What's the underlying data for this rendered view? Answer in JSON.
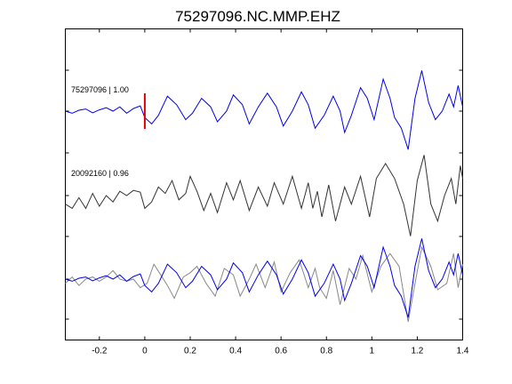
{
  "chart_data": {
    "type": "line",
    "title": "75297096.NC.MMP.EHZ",
    "xlabel": "",
    "ylabel": "",
    "xlim": [
      -0.35,
      1.4
    ],
    "xticks": [
      -0.2,
      0,
      0.2,
      0.4,
      0.6,
      0.8,
      1,
      1.2,
      1.4
    ],
    "xtick_labels": [
      "-0.2",
      "0",
      "0.2",
      "0.4",
      "0.6",
      "0.8",
      "1",
      "1.2",
      "1.4"
    ],
    "grid": false,
    "legend": "none",
    "pick_marker": {
      "x": 0,
      "color": "#e00000"
    },
    "traces": [
      {
        "label": "75297096 | 1.00",
        "color": "#0000ee",
        "points": [
          [
            -0.35,
            0
          ],
          [
            -0.32,
            -0.05
          ],
          [
            -0.29,
            0.02
          ],
          [
            -0.26,
            0.05
          ],
          [
            -0.23,
            -0.04
          ],
          [
            -0.2,
            0.03
          ],
          [
            -0.17,
            0.08
          ],
          [
            -0.14,
            0.0
          ],
          [
            -0.11,
            0.1
          ],
          [
            -0.08,
            -0.05
          ],
          [
            -0.05,
            0.06
          ],
          [
            -0.02,
            0.12
          ],
          [
            0.0,
            -0.15
          ],
          [
            0.03,
            -0.3
          ],
          [
            0.06,
            -0.1
          ],
          [
            0.1,
            0.35
          ],
          [
            0.14,
            0.15
          ],
          [
            0.18,
            -0.2
          ],
          [
            0.21,
            -0.05
          ],
          [
            0.25,
            0.3
          ],
          [
            0.29,
            0.1
          ],
          [
            0.32,
            -0.25
          ],
          [
            0.36,
            0.0
          ],
          [
            0.39,
            0.38
          ],
          [
            0.43,
            0.15
          ],
          [
            0.46,
            -0.3
          ],
          [
            0.5,
            0.1
          ],
          [
            0.54,
            0.42
          ],
          [
            0.58,
            0.1
          ],
          [
            0.61,
            -0.35
          ],
          [
            0.65,
            0.0
          ],
          [
            0.69,
            0.45
          ],
          [
            0.72,
            0.15
          ],
          [
            0.75,
            -0.4
          ],
          [
            0.79,
            -0.1
          ],
          [
            0.83,
            0.35
          ],
          [
            0.86,
            0.0
          ],
          [
            0.88,
            -0.5
          ],
          [
            0.91,
            -0.1
          ],
          [
            0.95,
            0.55
          ],
          [
            0.98,
            0.3
          ],
          [
            1.01,
            -0.2
          ],
          [
            1.05,
            0.75
          ],
          [
            1.08,
            0.3
          ],
          [
            1.1,
            -0.15
          ],
          [
            1.13,
            -0.4
          ],
          [
            1.16,
            -0.9
          ],
          [
            1.19,
            0.3
          ],
          [
            1.22,
            0.95
          ],
          [
            1.25,
            0.2
          ],
          [
            1.28,
            -0.2
          ],
          [
            1.31,
            0.0
          ],
          [
            1.34,
            0.4
          ],
          [
            1.36,
            0.1
          ],
          [
            1.38,
            0.6
          ],
          [
            1.4,
            0.1
          ]
        ]
      },
      {
        "label": "20092160 | 0.96",
        "color": "#333333",
        "points": [
          [
            -0.35,
            -0.2
          ],
          [
            -0.32,
            -0.3
          ],
          [
            -0.29,
            -0.05
          ],
          [
            -0.26,
            -0.3
          ],
          [
            -0.23,
            0.05
          ],
          [
            -0.2,
            -0.25
          ],
          [
            -0.17,
            0.0
          ],
          [
            -0.14,
            -0.15
          ],
          [
            -0.11,
            0.1
          ],
          [
            -0.08,
            0.0
          ],
          [
            -0.05,
            0.12
          ],
          [
            -0.02,
            0.08
          ],
          [
            0.0,
            -0.3
          ],
          [
            0.03,
            -0.15
          ],
          [
            0.06,
            0.2
          ],
          [
            0.09,
            0.05
          ],
          [
            0.12,
            0.35
          ],
          [
            0.15,
            -0.1
          ],
          [
            0.18,
            0.05
          ],
          [
            0.2,
            0.45
          ],
          [
            0.23,
            0.1
          ],
          [
            0.26,
            -0.35
          ],
          [
            0.29,
            0.05
          ],
          [
            0.32,
            -0.4
          ],
          [
            0.36,
            0.3
          ],
          [
            0.39,
            -0.1
          ],
          [
            0.42,
            0.35
          ],
          [
            0.46,
            -0.35
          ],
          [
            0.5,
            0.2
          ],
          [
            0.54,
            -0.25
          ],
          [
            0.57,
            0.3
          ],
          [
            0.61,
            -0.2
          ],
          [
            0.65,
            0.45
          ],
          [
            0.69,
            -0.3
          ],
          [
            0.72,
            0.3
          ],
          [
            0.74,
            -0.3
          ],
          [
            0.76,
            0.1
          ],
          [
            0.78,
            -0.5
          ],
          [
            0.81,
            0.25
          ],
          [
            0.84,
            -0.6
          ],
          [
            0.88,
            0.2
          ],
          [
            0.91,
            -0.2
          ],
          [
            0.95,
            0.45
          ],
          [
            0.99,
            -0.5
          ],
          [
            1.02,
            0.4
          ],
          [
            1.06,
            0.75
          ],
          [
            1.1,
            0.4
          ],
          [
            1.14,
            -0.2
          ],
          [
            1.17,
            -0.95
          ],
          [
            1.2,
            0.35
          ],
          [
            1.23,
            0.95
          ],
          [
            1.26,
            -0.2
          ],
          [
            1.29,
            -0.6
          ],
          [
            1.32,
            0.0
          ],
          [
            1.35,
            0.4
          ],
          [
            1.37,
            -0.2
          ],
          [
            1.39,
            0.7
          ],
          [
            1.4,
            0.4
          ]
        ]
      },
      {
        "label": "",
        "color": "#0000ee",
        "overlay_color": "#888888",
        "overlay_points": [
          [
            -0.35,
            -0.1
          ],
          [
            -0.32,
            0.05
          ],
          [
            -0.29,
            -0.15
          ],
          [
            -0.26,
            0.0
          ],
          [
            -0.23,
            0.05
          ],
          [
            -0.2,
            -0.05
          ],
          [
            -0.17,
            0.05
          ],
          [
            -0.14,
            0.2
          ],
          [
            -0.11,
            0.0
          ],
          [
            -0.08,
            -0.05
          ],
          [
            -0.05,
            0.0
          ],
          [
            -0.02,
            -0.2
          ],
          [
            0.01,
            -0.1
          ],
          [
            0.04,
            0.35
          ],
          [
            0.07,
            0.1
          ],
          [
            0.1,
            -0.15
          ],
          [
            0.13,
            -0.45
          ],
          [
            0.17,
            0.05
          ],
          [
            0.2,
            0.15
          ],
          [
            0.23,
            0.3
          ],
          [
            0.27,
            -0.1
          ],
          [
            0.31,
            -0.4
          ],
          [
            0.35,
            0.25
          ],
          [
            0.39,
            0.1
          ],
          [
            0.42,
            -0.4
          ],
          [
            0.46,
            0.0
          ],
          [
            0.49,
            0.35
          ],
          [
            0.53,
            -0.2
          ],
          [
            0.57,
            0.4
          ],
          [
            0.6,
            -0.3
          ],
          [
            0.64,
            0.15
          ],
          [
            0.68,
            0.45
          ],
          [
            0.72,
            -0.2
          ],
          [
            0.75,
            0.25
          ],
          [
            0.77,
            -0.2
          ],
          [
            0.8,
            -0.45
          ],
          [
            0.83,
            0.2
          ],
          [
            0.86,
            -0.6
          ],
          [
            0.9,
            0.25
          ],
          [
            0.93,
            0.0
          ],
          [
            0.96,
            0.55
          ],
          [
            1.0,
            -0.3
          ],
          [
            1.04,
            0.3
          ],
          [
            1.08,
            0.6
          ],
          [
            1.12,
            0.3
          ],
          [
            1.16,
            -1.0
          ],
          [
            1.19,
            -0.1
          ],
          [
            1.22,
            0.75
          ],
          [
            1.26,
            0.3
          ],
          [
            1.29,
            -0.25
          ],
          [
            1.33,
            -0.1
          ],
          [
            1.36,
            0.6
          ],
          [
            1.38,
            -0.2
          ],
          [
            1.4,
            0.35
          ]
        ],
        "points": [
          [
            -0.35,
            0
          ],
          [
            -0.32,
            -0.05
          ],
          [
            -0.29,
            0.02
          ],
          [
            -0.26,
            0.05
          ],
          [
            -0.23,
            -0.04
          ],
          [
            -0.2,
            0.03
          ],
          [
            -0.17,
            0.08
          ],
          [
            -0.14,
            0.0
          ],
          [
            -0.11,
            0.1
          ],
          [
            -0.08,
            -0.05
          ],
          [
            -0.05,
            0.06
          ],
          [
            -0.02,
            0.12
          ],
          [
            0.0,
            -0.15
          ],
          [
            0.03,
            -0.3
          ],
          [
            0.06,
            -0.1
          ],
          [
            0.1,
            0.35
          ],
          [
            0.14,
            0.15
          ],
          [
            0.18,
            -0.2
          ],
          [
            0.21,
            -0.05
          ],
          [
            0.25,
            0.3
          ],
          [
            0.29,
            0.1
          ],
          [
            0.32,
            -0.25
          ],
          [
            0.36,
            0.0
          ],
          [
            0.39,
            0.38
          ],
          [
            0.43,
            0.15
          ],
          [
            0.46,
            -0.3
          ],
          [
            0.5,
            0.1
          ],
          [
            0.54,
            0.42
          ],
          [
            0.58,
            0.1
          ],
          [
            0.61,
            -0.35
          ],
          [
            0.65,
            0.0
          ],
          [
            0.69,
            0.45
          ],
          [
            0.72,
            0.15
          ],
          [
            0.75,
            -0.4
          ],
          [
            0.79,
            -0.1
          ],
          [
            0.83,
            0.35
          ],
          [
            0.86,
            0.0
          ],
          [
            0.88,
            -0.5
          ],
          [
            0.91,
            -0.1
          ],
          [
            0.95,
            0.55
          ],
          [
            0.98,
            0.3
          ],
          [
            1.01,
            -0.2
          ],
          [
            1.05,
            0.75
          ],
          [
            1.08,
            0.3
          ],
          [
            1.1,
            -0.15
          ],
          [
            1.13,
            -0.4
          ],
          [
            1.16,
            -0.9
          ],
          [
            1.19,
            0.3
          ],
          [
            1.22,
            0.95
          ],
          [
            1.25,
            0.2
          ],
          [
            1.28,
            -0.2
          ],
          [
            1.31,
            0.0
          ],
          [
            1.34,
            0.4
          ],
          [
            1.36,
            0.1
          ],
          [
            1.38,
            0.6
          ],
          [
            1.4,
            0.1
          ]
        ]
      }
    ]
  }
}
